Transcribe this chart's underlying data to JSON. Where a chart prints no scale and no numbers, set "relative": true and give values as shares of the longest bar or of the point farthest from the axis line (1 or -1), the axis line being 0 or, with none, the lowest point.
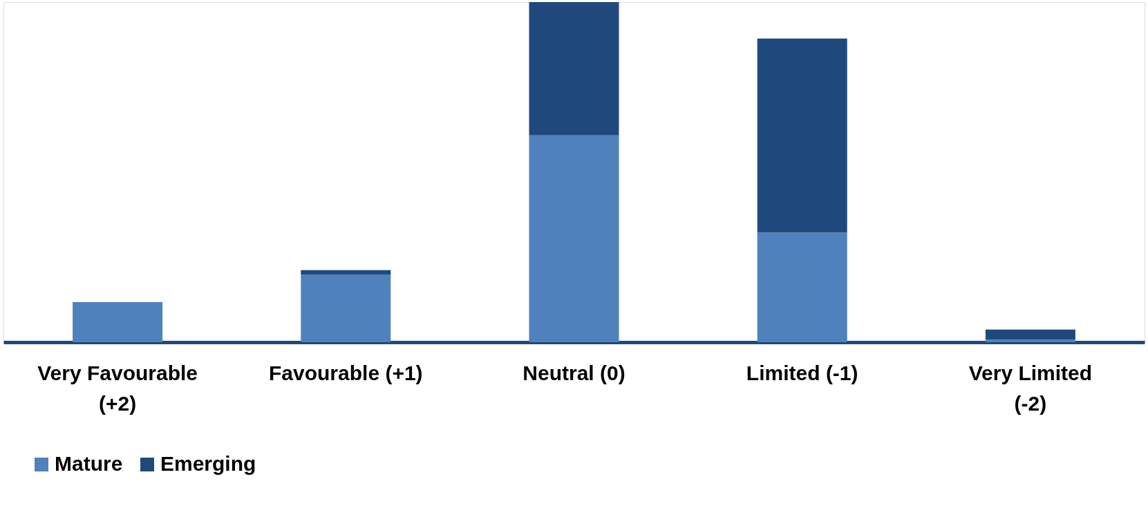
{
  "chart_data": {
    "type": "bar",
    "stacked": true,
    "relative": true,
    "legend": "bottom",
    "grid": false,
    "categories": [
      "Very Favourable (+2)",
      "Favourable (+1)",
      "Neutral (0)",
      "Limited (-1)",
      "Very Limited (-2)"
    ],
    "series": [
      {
        "name": "Mature",
        "color": "#4f81bd",
        "values": [
          0.118,
          0.199,
          0.608,
          0.322,
          0.007
        ]
      },
      {
        "name": "Emerging",
        "color": "#1f497d",
        "values": [
          0,
          0.013,
          0.392,
          0.571,
          0.03
        ]
      }
    ]
  }
}
